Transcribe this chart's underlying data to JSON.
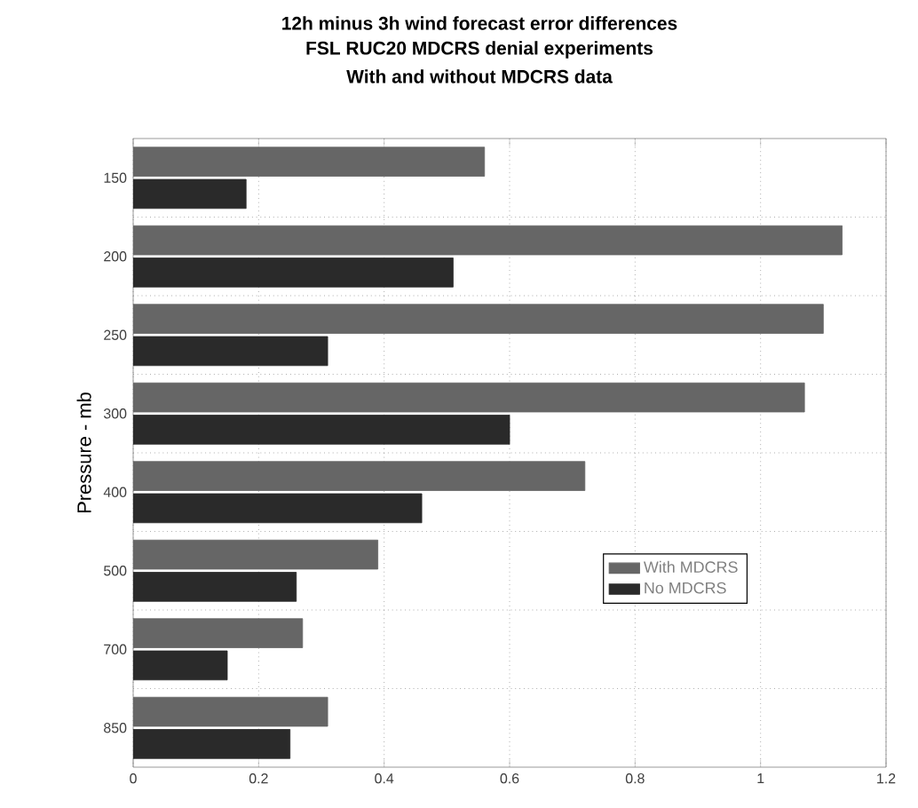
{
  "chart_data": {
    "type": "bar",
    "orientation": "horizontal",
    "title": "12h minus 3h wind forecast error differences",
    "subtitle": "FSL RUC20 MDCRS denial experiments",
    "annotations": [
      "With and without MDCRS data"
    ],
    "ylabel": "Pressure - mb",
    "categories": [
      "150",
      "200",
      "250",
      "300",
      "400",
      "500",
      "700",
      "850"
    ],
    "series": [
      {
        "name": "With MDCRS",
        "color": "#666666",
        "values": [
          0.56,
          1.13,
          1.1,
          1.07,
          0.72,
          0.39,
          0.27,
          0.31
        ]
      },
      {
        "name": "No MDCRS",
        "color": "#2a2a2a",
        "values": [
          0.18,
          0.51,
          0.31,
          0.6,
          0.46,
          0.26,
          0.15,
          0.25
        ]
      }
    ],
    "xlim": [
      0,
      1.2
    ],
    "xticks": [
      0,
      0.2,
      0.4,
      0.6,
      0.8,
      1,
      1.2
    ],
    "grid": true,
    "legend": "right"
  }
}
